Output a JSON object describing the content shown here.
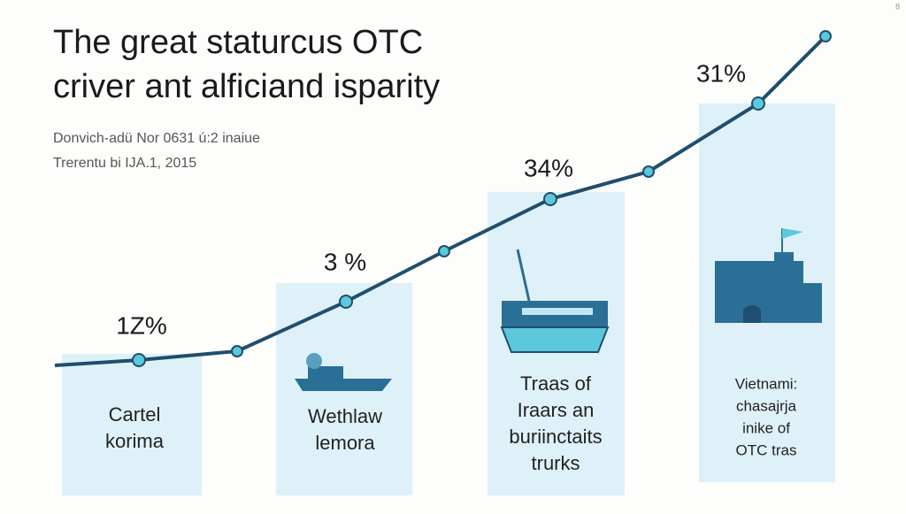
{
  "corner_mark": "8",
  "header": {
    "title": [
      "The great staturcus OTC",
      "criver ant alficiand isparity"
    ],
    "subtitle": [
      "Donvich-adü Nor 0631 ú:2 inaiue",
      "Trerentu bi IJA.1, 2015"
    ]
  },
  "panels": [
    {
      "percent": "1Z%",
      "label": [
        "Cartel",
        "korima"
      ]
    },
    {
      "percent": "3 %",
      "label": [
        "Wethlaw",
        "lemora"
      ]
    },
    {
      "percent": "34%",
      "label": [
        "Traas of",
        "Iraars an",
        "buriinctaits",
        "trurks"
      ]
    },
    {
      "percent": "31%",
      "label": [
        "Vietnami:",
        "chasajrja",
        "inike of",
        "OTC tras"
      ]
    }
  ]
}
